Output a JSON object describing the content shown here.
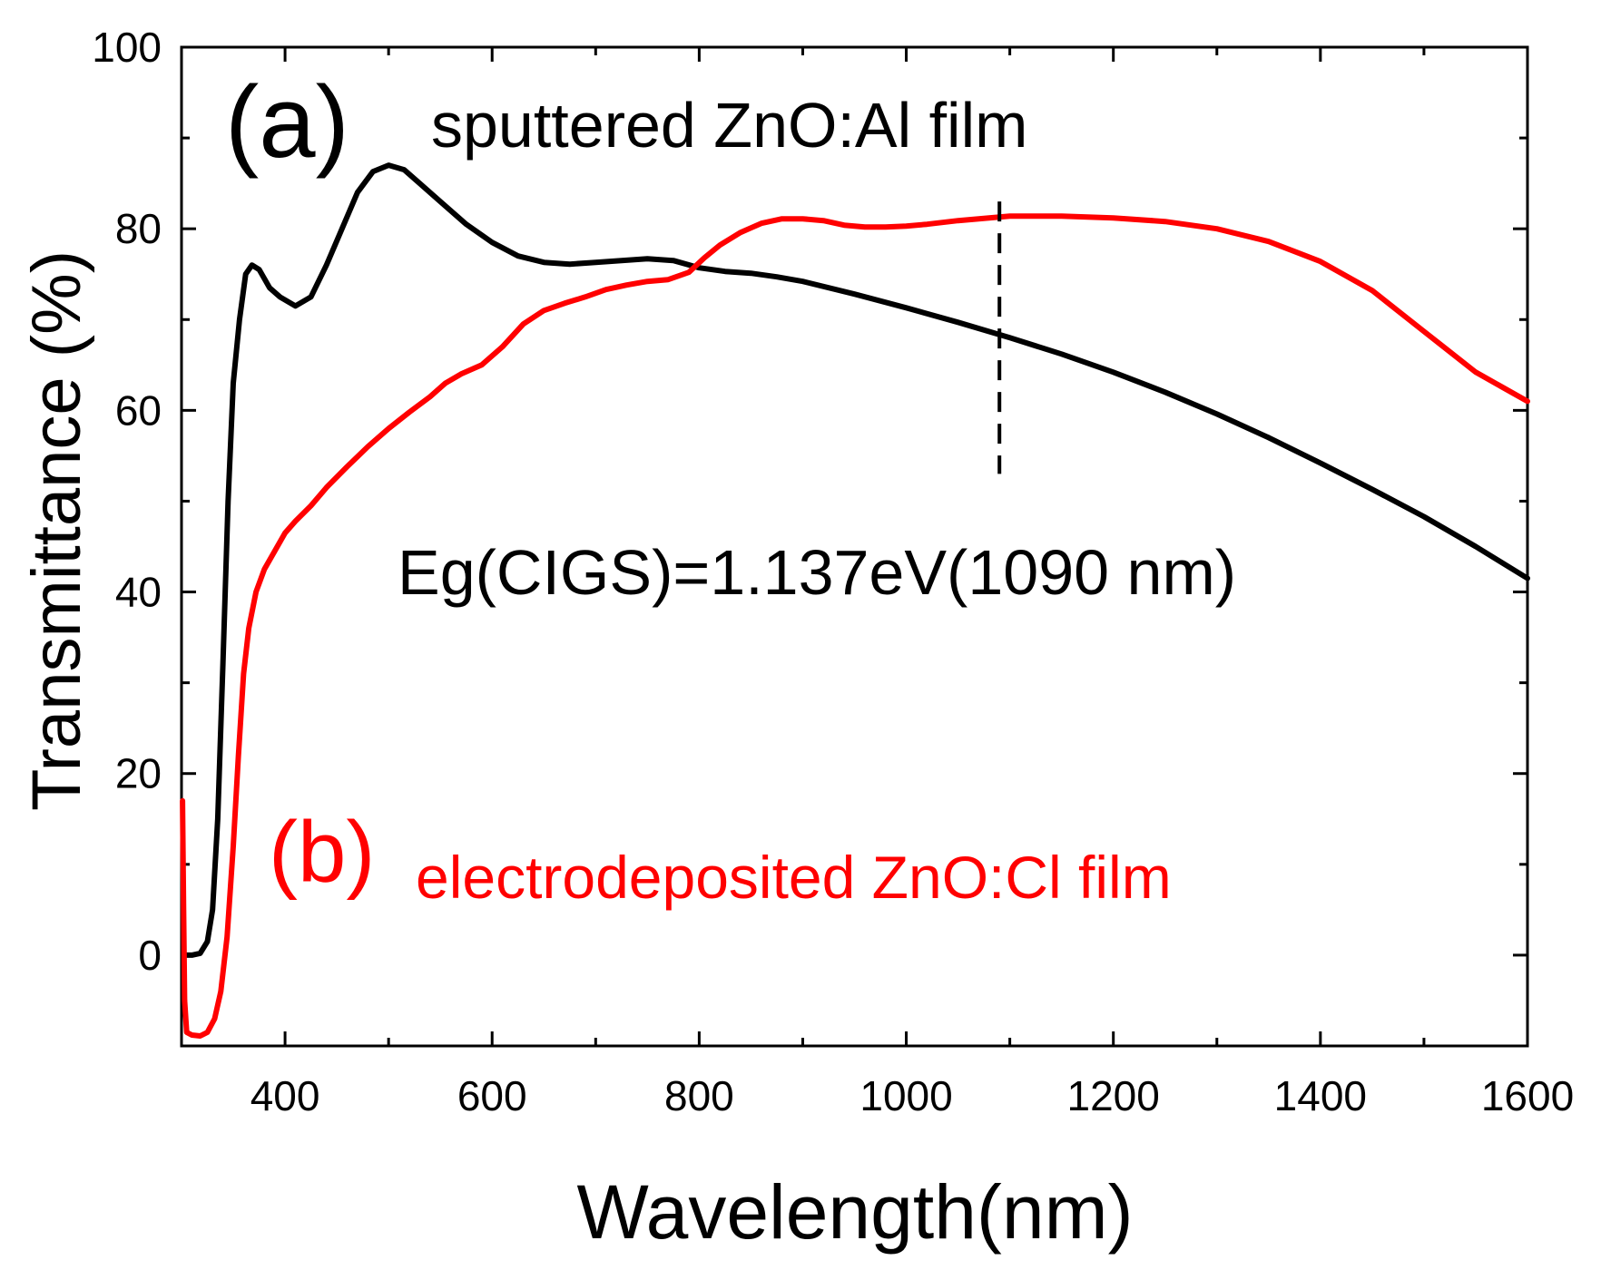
{
  "chart_data": {
    "type": "line",
    "xlabel": "Wavelength(nm)",
    "ylabel": "Transmittance (%)",
    "xlim": [
      300,
      1600
    ],
    "ylim": [
      -10,
      100
    ],
    "xticks": [
      400,
      600,
      800,
      1000,
      1200,
      1400,
      1600
    ],
    "yticks": [
      0,
      20,
      40,
      60,
      80,
      100
    ],
    "x_minor_step": 100,
    "y_minor_step": 10,
    "grid": false,
    "colors": {
      "sputtered": "#000000",
      "electrodeposited": "#ff0000"
    },
    "annotations": {
      "panel_a": "(a)",
      "sputtered_label": "sputtered ZnO:Al film",
      "panel_b": "(b)",
      "electrodeposited_label": "electrodeposited ZnO:Cl film",
      "bandgap": "Eg(CIGS)=1.137eV(1090 nm)",
      "bandgap_wavelength": 1090,
      "bandgap_line_range": [
        53,
        83
      ]
    },
    "series": [
      {
        "name": "sputtered ZnO:Al film",
        "color": "#000000",
        "points": [
          [
            303,
            0.0
          ],
          [
            310,
            0.0
          ],
          [
            318,
            0.2
          ],
          [
            325,
            1.5
          ],
          [
            330,
            5
          ],
          [
            335,
            15
          ],
          [
            340,
            32
          ],
          [
            345,
            50
          ],
          [
            350,
            63
          ],
          [
            356,
            70
          ],
          [
            362,
            75
          ],
          [
            368,
            76
          ],
          [
            375,
            75.5
          ],
          [
            385,
            73.5
          ],
          [
            395,
            72.5
          ],
          [
            410,
            71.5
          ],
          [
            425,
            72.5
          ],
          [
            440,
            76
          ],
          [
            455,
            80
          ],
          [
            470,
            84
          ],
          [
            485,
            86.3
          ],
          [
            500,
            87
          ],
          [
            515,
            86.5
          ],
          [
            530,
            85
          ],
          [
            550,
            83
          ],
          [
            575,
            80.5
          ],
          [
            600,
            78.5
          ],
          [
            625,
            77
          ],
          [
            650,
            76.3
          ],
          [
            675,
            76.1
          ],
          [
            700,
            76.3
          ],
          [
            725,
            76.5
          ],
          [
            750,
            76.7
          ],
          [
            775,
            76.5
          ],
          [
            800,
            75.7
          ],
          [
            825,
            75.3
          ],
          [
            850,
            75.1
          ],
          [
            875,
            74.7
          ],
          [
            900,
            74.2
          ],
          [
            950,
            72.8
          ],
          [
            1000,
            71.3
          ],
          [
            1050,
            69.7
          ],
          [
            1100,
            68
          ],
          [
            1150,
            66.2
          ],
          [
            1200,
            64.2
          ],
          [
            1250,
            62
          ],
          [
            1300,
            59.6
          ],
          [
            1350,
            57
          ],
          [
            1400,
            54.2
          ],
          [
            1450,
            51.3
          ],
          [
            1500,
            48.3
          ],
          [
            1550,
            45
          ],
          [
            1600,
            41.5
          ]
        ]
      },
      {
        "name": "electrodeposited ZnO:Cl film",
        "color": "#ff0000",
        "points": [
          [
            301,
            17
          ],
          [
            302,
            5
          ],
          [
            303,
            -5
          ],
          [
            305,
            -8.5
          ],
          [
            310,
            -8.8
          ],
          [
            318,
            -8.9
          ],
          [
            325,
            -8.5
          ],
          [
            332,
            -7
          ],
          [
            338,
            -4
          ],
          [
            344,
            2
          ],
          [
            350,
            12
          ],
          [
            355,
            22
          ],
          [
            360,
            31
          ],
          [
            365,
            36
          ],
          [
            372,
            40
          ],
          [
            380,
            42.5
          ],
          [
            390,
            44.5
          ],
          [
            400,
            46.5
          ],
          [
            410,
            47.8
          ],
          [
            425,
            49.5
          ],
          [
            440,
            51.5
          ],
          [
            460,
            53.8
          ],
          [
            480,
            56
          ],
          [
            500,
            58
          ],
          [
            520,
            59.8
          ],
          [
            540,
            61.5
          ],
          [
            555,
            63
          ],
          [
            570,
            64
          ],
          [
            590,
            65
          ],
          [
            610,
            67
          ],
          [
            630,
            69.5
          ],
          [
            650,
            71
          ],
          [
            670,
            71.8
          ],
          [
            690,
            72.5
          ],
          [
            710,
            73.3
          ],
          [
            730,
            73.8
          ],
          [
            750,
            74.2
          ],
          [
            770,
            74.4
          ],
          [
            790,
            75.2
          ],
          [
            805,
            76.8
          ],
          [
            820,
            78.2
          ],
          [
            840,
            79.6
          ],
          [
            860,
            80.6
          ],
          [
            880,
            81.1
          ],
          [
            900,
            81.1
          ],
          [
            920,
            80.9
          ],
          [
            940,
            80.4
          ],
          [
            960,
            80.2
          ],
          [
            980,
            80.2
          ],
          [
            1000,
            80.3
          ],
          [
            1020,
            80.5
          ],
          [
            1050,
            80.9
          ],
          [
            1080,
            81.2
          ],
          [
            1100,
            81.4
          ],
          [
            1150,
            81.4
          ],
          [
            1200,
            81.2
          ],
          [
            1250,
            80.8
          ],
          [
            1300,
            80.0
          ],
          [
            1350,
            78.6
          ],
          [
            1400,
            76.4
          ],
          [
            1450,
            73.2
          ],
          [
            1500,
            68.7
          ],
          [
            1550,
            64.2
          ],
          [
            1600,
            61
          ]
        ]
      }
    ]
  }
}
